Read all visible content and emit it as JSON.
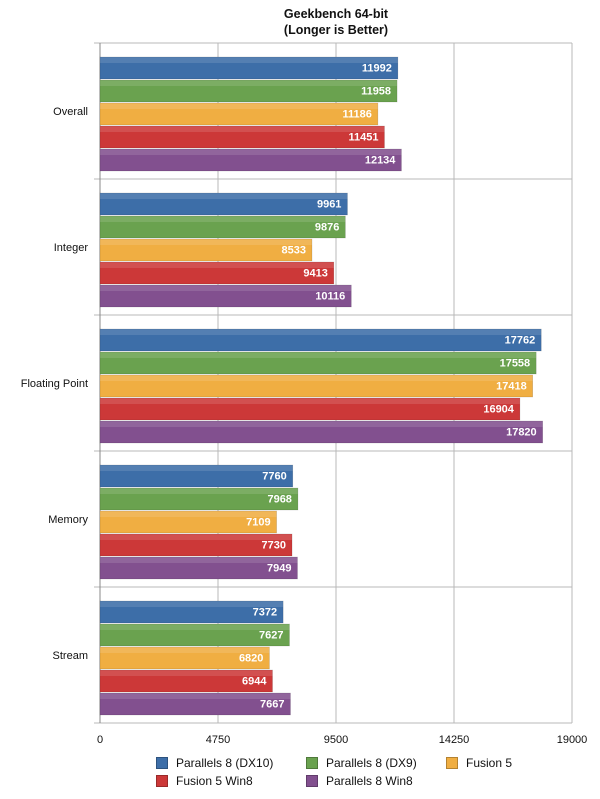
{
  "chart_data": {
    "type": "bar",
    "orientation": "horizontal",
    "title": "Geekbench 64-bit",
    "subtitle": "(Longer is Better)",
    "xlabel": "",
    "ylabel": "",
    "xlim": [
      0,
      19000
    ],
    "ticks": [
      0,
      4750,
      9500,
      14250,
      19000
    ],
    "tick_labels": [
      "0",
      "4750",
      "9500",
      "14250",
      "19000"
    ],
    "grid": true,
    "legend_position": "bottom",
    "categories": [
      "Overall",
      "Integer",
      "Floating Point",
      "Memory",
      "Stream"
    ],
    "series": [
      {
        "name": "Parallels 8 (DX10)",
        "color": "#3d6ea8",
        "values": [
          11992,
          9961,
          17762,
          7760,
          7372
        ]
      },
      {
        "name": "Parallels 8 (DX9)",
        "color": "#6aa24f",
        "values": [
          11958,
          9876,
          17558,
          7968,
          7627
        ]
      },
      {
        "name": "Fusion 5",
        "color": "#f0ae42",
        "values": [
          11186,
          8533,
          17418,
          7109,
          6820
        ]
      },
      {
        "name": "Fusion 5 Win8",
        "color": "#cc3838",
        "values": [
          11451,
          9413,
          16904,
          7730,
          6944
        ]
      },
      {
        "name": "Parallels 8 Win8",
        "color": "#82508f",
        "values": [
          12134,
          10116,
          17820,
          7949,
          7667
        ]
      }
    ]
  }
}
